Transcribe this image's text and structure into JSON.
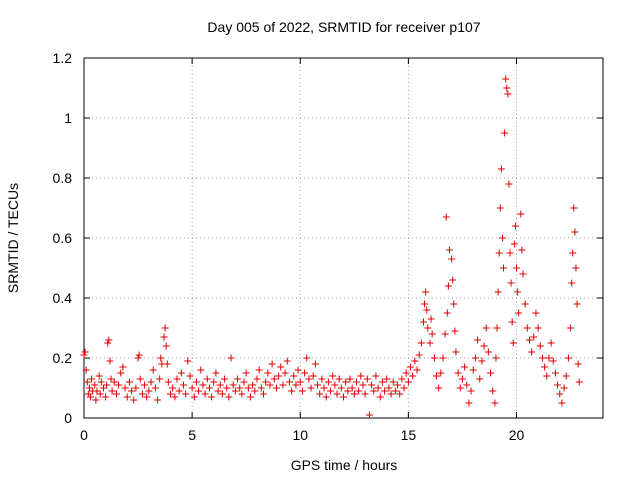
{
  "chart_data": {
    "type": "scatter",
    "title": "Day 005 of 2022, SRMTID for receiver p107",
    "xlabel": "GPS time / hours",
    "ylabel": "SRMTID / TECUs",
    "xlim": [
      0,
      24
    ],
    "ylim": [
      0,
      1.2
    ],
    "xticks": [
      0,
      5,
      10,
      15,
      20
    ],
    "xtick_labels": [
      "0",
      "5",
      "10",
      "15",
      "20"
    ],
    "yticks": [
      0,
      0.2,
      0.4,
      0.6,
      0.8,
      1.0,
      1.2
    ],
    "ytick_labels": [
      "0",
      "0.2",
      "0.4",
      "0.6",
      "0.8",
      "1",
      "1.2"
    ],
    "grid": true,
    "marker": "+",
    "series": [
      {
        "name": "SRMTID",
        "color": "#e00000",
        "points": [
          [
            0.0,
            0.21
          ],
          [
            0.05,
            0.22
          ],
          [
            0.1,
            0.16
          ],
          [
            0.15,
            0.12
          ],
          [
            0.2,
            0.08
          ],
          [
            0.25,
            0.1
          ],
          [
            0.3,
            0.07
          ],
          [
            0.35,
            0.13
          ],
          [
            0.4,
            0.09
          ],
          [
            0.5,
            0.11
          ],
          [
            0.55,
            0.06
          ],
          [
            0.6,
            0.09
          ],
          [
            0.7,
            0.14
          ],
          [
            0.75,
            0.08
          ],
          [
            0.8,
            0.12
          ],
          [
            0.9,
            0.1
          ],
          [
            1.0,
            0.07
          ],
          [
            1.05,
            0.11
          ],
          [
            1.1,
            0.25
          ],
          [
            1.15,
            0.26
          ],
          [
            1.2,
            0.19
          ],
          [
            1.25,
            0.13
          ],
          [
            1.3,
            0.09
          ],
          [
            1.4,
            0.12
          ],
          [
            1.5,
            0.08
          ],
          [
            1.6,
            0.11
          ],
          [
            1.7,
            0.15
          ],
          [
            1.8,
            0.17
          ],
          [
            1.9,
            0.1
          ],
          [
            2.0,
            0.07
          ],
          [
            2.1,
            0.12
          ],
          [
            2.2,
            0.09
          ],
          [
            2.3,
            0.06
          ],
          [
            2.4,
            0.1
          ],
          [
            2.5,
            0.2
          ],
          [
            2.55,
            0.21
          ],
          [
            2.6,
            0.13
          ],
          [
            2.7,
            0.08
          ],
          [
            2.8,
            0.11
          ],
          [
            2.9,
            0.07
          ],
          [
            3.0,
            0.09
          ],
          [
            3.1,
            0.12
          ],
          [
            3.2,
            0.16
          ],
          [
            3.3,
            0.1
          ],
          [
            3.4,
            0.06
          ],
          [
            3.5,
            0.13
          ],
          [
            3.55,
            0.2
          ],
          [
            3.6,
            0.18
          ],
          [
            3.7,
            0.27
          ],
          [
            3.75,
            0.3
          ],
          [
            3.8,
            0.24
          ],
          [
            3.85,
            0.18
          ],
          [
            3.9,
            0.12
          ],
          [
            4.0,
            0.08
          ],
          [
            4.1,
            0.1
          ],
          [
            4.2,
            0.07
          ],
          [
            4.3,
            0.13
          ],
          [
            4.4,
            0.09
          ],
          [
            4.5,
            0.15
          ],
          [
            4.6,
            0.11
          ],
          [
            4.7,
            0.08
          ],
          [
            4.8,
            0.19
          ],
          [
            4.9,
            0.14
          ],
          [
            5.0,
            0.1
          ],
          [
            5.1,
            0.07
          ],
          [
            5.2,
            0.12
          ],
          [
            5.3,
            0.09
          ],
          [
            5.4,
            0.16
          ],
          [
            5.5,
            0.11
          ],
          [
            5.6,
            0.08
          ],
          [
            5.7,
            0.13
          ],
          [
            5.8,
            0.1
          ],
          [
            5.9,
            0.07
          ],
          [
            6.0,
            0.12
          ],
          [
            6.1,
            0.15
          ],
          [
            6.2,
            0.09
          ],
          [
            6.3,
            0.11
          ],
          [
            6.4,
            0.08
          ],
          [
            6.5,
            0.13
          ],
          [
            6.6,
            0.1
          ],
          [
            6.7,
            0.07
          ],
          [
            6.8,
            0.2
          ],
          [
            6.9,
            0.11
          ],
          [
            7.0,
            0.09
          ],
          [
            7.1,
            0.13
          ],
          [
            7.2,
            0.1
          ],
          [
            7.3,
            0.08
          ],
          [
            7.4,
            0.12
          ],
          [
            7.5,
            0.15
          ],
          [
            7.6,
            0.1
          ],
          [
            7.7,
            0.07
          ],
          [
            7.8,
            0.11
          ],
          [
            7.9,
            0.09
          ],
          [
            8.0,
            0.13
          ],
          [
            8.1,
            0.16
          ],
          [
            8.2,
            0.1
          ],
          [
            8.3,
            0.08
          ],
          [
            8.4,
            0.12
          ],
          [
            8.5,
            0.15
          ],
          [
            8.6,
            0.11
          ],
          [
            8.7,
            0.18
          ],
          [
            8.8,
            0.13
          ],
          [
            8.9,
            0.1
          ],
          [
            9.0,
            0.14
          ],
          [
            9.1,
            0.17
          ],
          [
            9.2,
            0.11
          ],
          [
            9.3,
            0.15
          ],
          [
            9.4,
            0.19
          ],
          [
            9.5,
            0.12
          ],
          [
            9.6,
            0.09
          ],
          [
            9.7,
            0.14
          ],
          [
            9.8,
            0.11
          ],
          [
            9.9,
            0.16
          ],
          [
            10.0,
            0.12
          ],
          [
            10.1,
            0.09
          ],
          [
            10.2,
            0.15
          ],
          [
            10.3,
            0.2
          ],
          [
            10.4,
            0.13
          ],
          [
            10.5,
            0.1
          ],
          [
            10.6,
            0.14
          ],
          [
            10.7,
            0.18
          ],
          [
            10.8,
            0.11
          ],
          [
            10.9,
            0.08
          ],
          [
            11.0,
            0.13
          ],
          [
            11.1,
            0.1
          ],
          [
            11.2,
            0.07
          ],
          [
            11.3,
            0.12
          ],
          [
            11.4,
            0.09
          ],
          [
            11.5,
            0.14
          ],
          [
            11.6,
            0.11
          ],
          [
            11.7,
            0.08
          ],
          [
            11.8,
            0.13
          ],
          [
            11.9,
            0.1
          ],
          [
            12.0,
            0.07
          ],
          [
            12.1,
            0.12
          ],
          [
            12.2,
            0.09
          ],
          [
            12.3,
            0.13
          ],
          [
            12.4,
            0.1
          ],
          [
            12.5,
            0.08
          ],
          [
            12.6,
            0.12
          ],
          [
            12.7,
            0.09
          ],
          [
            12.8,
            0.14
          ],
          [
            12.9,
            0.11
          ],
          [
            13.0,
            0.08
          ],
          [
            13.1,
            0.13
          ],
          [
            13.2,
            0.01
          ],
          [
            13.3,
            0.11
          ],
          [
            13.4,
            0.09
          ],
          [
            13.5,
            0.14
          ],
          [
            13.6,
            0.1
          ],
          [
            13.7,
            0.07
          ],
          [
            13.8,
            0.12
          ],
          [
            13.9,
            0.09
          ],
          [
            14.0,
            0.13
          ],
          [
            14.1,
            0.1
          ],
          [
            14.2,
            0.08
          ],
          [
            14.3,
            0.12
          ],
          [
            14.4,
            0.09
          ],
          [
            14.5,
            0.11
          ],
          [
            14.6,
            0.08
          ],
          [
            14.7,
            0.13
          ],
          [
            14.8,
            0.1
          ],
          [
            14.9,
            0.15
          ],
          [
            15.0,
            0.12
          ],
          [
            15.1,
            0.17
          ],
          [
            15.2,
            0.14
          ],
          [
            15.3,
            0.19
          ],
          [
            15.4,
            0.16
          ],
          [
            15.5,
            0.21
          ],
          [
            15.6,
            0.25
          ],
          [
            15.7,
            0.32
          ],
          [
            15.75,
            0.38
          ],
          [
            15.8,
            0.42
          ],
          [
            15.85,
            0.36
          ],
          [
            15.9,
            0.3
          ],
          [
            16.0,
            0.25
          ],
          [
            16.05,
            0.33
          ],
          [
            16.1,
            0.28
          ],
          [
            16.2,
            0.2
          ],
          [
            16.3,
            0.14
          ],
          [
            16.4,
            0.1
          ],
          [
            16.5,
            0.15
          ],
          [
            16.6,
            0.2
          ],
          [
            16.7,
            0.28
          ],
          [
            16.75,
            0.67
          ],
          [
            16.8,
            0.35
          ],
          [
            16.85,
            0.44
          ],
          [
            16.9,
            0.56
          ],
          [
            17.0,
            0.53
          ],
          [
            17.05,
            0.46
          ],
          [
            17.1,
            0.38
          ],
          [
            17.15,
            0.29
          ],
          [
            17.2,
            0.22
          ],
          [
            17.3,
            0.15
          ],
          [
            17.4,
            0.1
          ],
          [
            17.5,
            0.13
          ],
          [
            17.6,
            0.17
          ],
          [
            17.7,
            0.11
          ],
          [
            17.8,
            0.05
          ],
          [
            17.9,
            0.09
          ],
          [
            18.0,
            0.16
          ],
          [
            18.1,
            0.2
          ],
          [
            18.2,
            0.26
          ],
          [
            18.3,
            0.13
          ],
          [
            18.4,
            0.19
          ],
          [
            18.5,
            0.24
          ],
          [
            18.6,
            0.3
          ],
          [
            18.7,
            0.22
          ],
          [
            18.8,
            0.15
          ],
          [
            18.9,
            0.09
          ],
          [
            19.0,
            0.05
          ],
          [
            19.05,
            0.2
          ],
          [
            19.1,
            0.3
          ],
          [
            19.15,
            0.42
          ],
          [
            19.2,
            0.55
          ],
          [
            19.25,
            0.7
          ],
          [
            19.3,
            0.83
          ],
          [
            19.35,
            0.6
          ],
          [
            19.4,
            0.5
          ],
          [
            19.45,
            0.95
          ],
          [
            19.5,
            1.13
          ],
          [
            19.55,
            1.1
          ],
          [
            19.6,
            1.08
          ],
          [
            19.65,
            0.78
          ],
          [
            19.7,
            0.55
          ],
          [
            19.75,
            0.45
          ],
          [
            19.8,
            0.32
          ],
          [
            19.85,
            0.25
          ],
          [
            19.9,
            0.58
          ],
          [
            19.95,
            0.64
          ],
          [
            20.0,
            0.5
          ],
          [
            20.05,
            0.42
          ],
          [
            20.1,
            0.35
          ],
          [
            20.2,
            0.68
          ],
          [
            20.25,
            0.56
          ],
          [
            20.3,
            0.48
          ],
          [
            20.4,
            0.38
          ],
          [
            20.5,
            0.3
          ],
          [
            20.6,
            0.26
          ],
          [
            20.7,
            0.22
          ],
          [
            20.8,
            0.27
          ],
          [
            20.9,
            0.35
          ],
          [
            21.0,
            0.3
          ],
          [
            21.1,
            0.24
          ],
          [
            21.2,
            0.2
          ],
          [
            21.3,
            0.17
          ],
          [
            21.4,
            0.14
          ],
          [
            21.5,
            0.2
          ],
          [
            21.6,
            0.25
          ],
          [
            21.7,
            0.19
          ],
          [
            21.8,
            0.15
          ],
          [
            21.9,
            0.11
          ],
          [
            22.0,
            0.08
          ],
          [
            22.1,
            0.05
          ],
          [
            22.2,
            0.1
          ],
          [
            22.3,
            0.14
          ],
          [
            22.4,
            0.2
          ],
          [
            22.5,
            0.3
          ],
          [
            22.55,
            0.45
          ],
          [
            22.6,
            0.55
          ],
          [
            22.65,
            0.7
          ],
          [
            22.7,
            0.62
          ],
          [
            22.75,
            0.5
          ],
          [
            22.8,
            0.38
          ],
          [
            22.85,
            0.18
          ],
          [
            22.9,
            0.12
          ]
        ]
      }
    ]
  }
}
